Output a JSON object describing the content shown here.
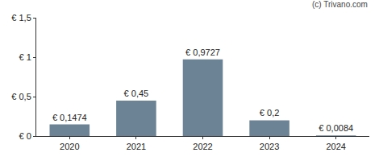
{
  "chart_data": {
    "type": "bar",
    "annotation": "(c) Trivano.com",
    "categories": [
      "2020",
      "2021",
      "2022",
      "2023",
      "2024"
    ],
    "values": [
      0.1474,
      0.45,
      0.9727,
      0.2,
      0.0084
    ],
    "value_labels": [
      "€ 0,1474",
      "€ 0,45",
      "€ 0,9727",
      "€ 0,2",
      "€ 0,0084"
    ],
    "data_labels": true,
    "color": "#6b8394",
    "ylim": [
      0,
      1.5
    ],
    "yticks": [
      {
        "value": 0,
        "label": "€ 0"
      },
      {
        "value": 0.5,
        "label": "€ 0,5"
      },
      {
        "value": 1,
        "label": "€ 1"
      },
      {
        "value": 1.5,
        "label": "€ 1,5"
      }
    ],
    "grid": false
  }
}
